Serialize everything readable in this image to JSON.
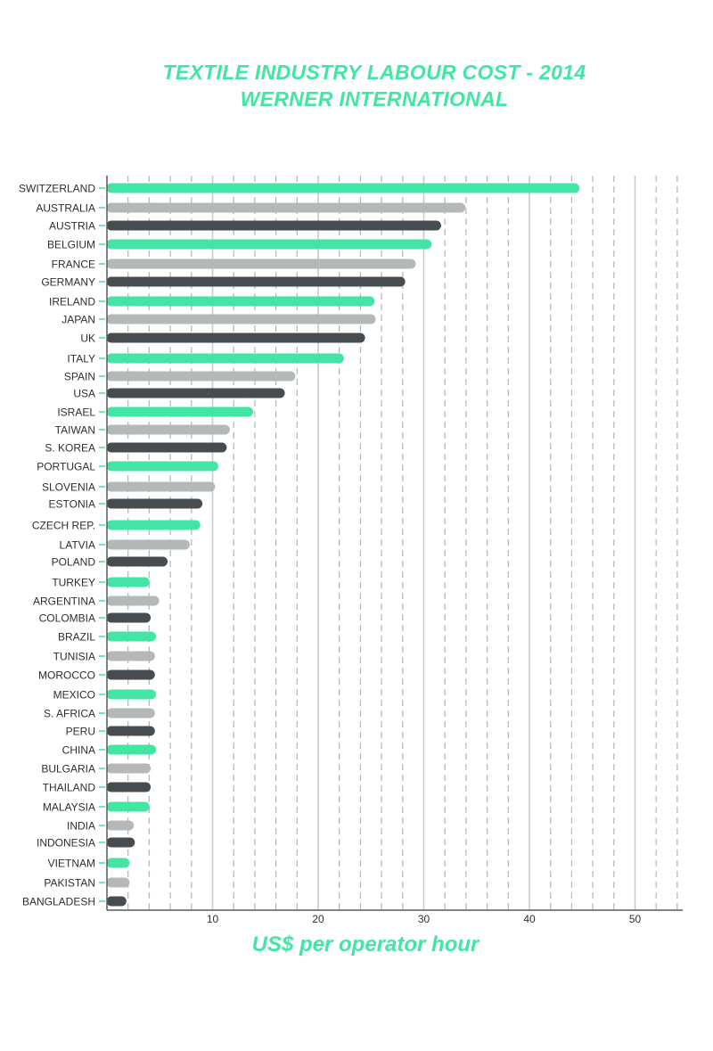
{
  "chart_data": {
    "type": "bar",
    "orientation": "horizontal",
    "title": "TEXTILE INDUSTRY LABOUR COST - 2014",
    "subtitle": "WERNER INTERNATIONAL",
    "xlabel": "US$ per operator hour",
    "ylabel": "",
    "xlim": [
      0,
      54.5
    ],
    "x_ticks": [
      10,
      20,
      30,
      40,
      50
    ],
    "grid": "vertical solid every 10, dashed every 2",
    "legend": "none",
    "colors": {
      "accent": "#43e5a4",
      "grey": "#b4b8b9",
      "dark": "#474c50",
      "axis": "#555a5e",
      "grid_solid": "#c8cacc",
      "grid_dashed": "#b7babc"
    },
    "categories": [
      "SWITZERLAND",
      "AUSTRALIA",
      "AUSTRIA",
      "BELGIUM",
      "FRANCE",
      "GERMANY",
      "IRELAND",
      "JAPAN",
      "UK",
      "ITALY",
      "SPAIN",
      "USA",
      "ISRAEL",
      "TAIWAN",
      "S. KOREA",
      "PORTUGAL",
      "SLOVENIA",
      "ESTONIA",
      "CZECH REP.",
      "LATVIA",
      "POLAND",
      "TURKEY",
      "ARGENTINA",
      "COLOMBIA",
      "BRAZIL",
      "TUNISIA",
      "MOROCCO",
      "MEXICO",
      "S. AFRICA",
      "PERU",
      "CHINA",
      "BULGARIA",
      "THAILAND",
      "MALAYSIA",
      "INDIA",
      "INDONESIA",
      "VIETNAM",
      "PAKISTAN",
      "BANGLADESH"
    ],
    "values": [
      44.7,
      33.9,
      31.6,
      30.7,
      29.2,
      28.2,
      25.3,
      25.4,
      24.4,
      22.4,
      17.8,
      16.8,
      13.8,
      11.6,
      11.3,
      10.5,
      10.2,
      9.0,
      8.8,
      7.8,
      5.7,
      4.0,
      4.9,
      4.1,
      4.6,
      4.5,
      4.5,
      4.6,
      4.5,
      4.5,
      4.6,
      4.1,
      4.1,
      4.0,
      2.5,
      2.6,
      2.1,
      2.1,
      1.8
    ],
    "bar_colors": [
      "accent",
      "grey",
      "dark",
      "accent",
      "grey",
      "dark",
      "accent",
      "grey",
      "dark",
      "accent",
      "grey",
      "dark",
      "accent",
      "grey",
      "dark",
      "accent",
      "grey",
      "dark",
      "accent",
      "grey",
      "dark",
      "accent",
      "grey",
      "dark",
      "accent",
      "grey",
      "dark",
      "accent",
      "grey",
      "dark",
      "accent",
      "grey",
      "dark",
      "accent",
      "grey",
      "dark",
      "accent",
      "grey",
      "dark"
    ]
  }
}
